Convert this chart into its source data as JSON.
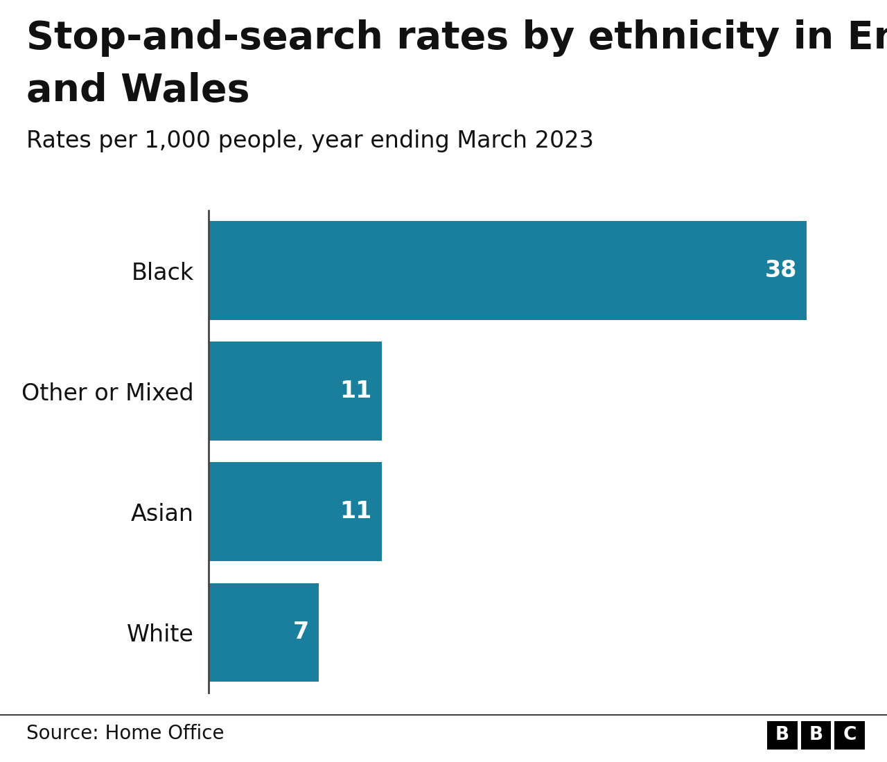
{
  "title_line1": "Stop-and-search rates by ethnicity in England",
  "title_line2": "and Wales",
  "subtitle": "Rates per 1,000 people, year ending March 2023",
  "categories": [
    "Black",
    "Other or Mixed",
    "Asian",
    "White"
  ],
  "values": [
    38,
    11,
    11,
    7
  ],
  "bar_color": "#1a7f9c",
  "label_color": "#ffffff",
  "title_color": "#111111",
  "subtitle_color": "#111111",
  "background_color": "#ffffff",
  "source_text": "Source: Home Office",
  "xlim": [
    0,
    42
  ],
  "bar_label_fontsize": 24,
  "category_fontsize": 24,
  "title_fontsize": 40,
  "subtitle_fontsize": 24,
  "source_fontsize": 20,
  "bar_height": 0.82
}
